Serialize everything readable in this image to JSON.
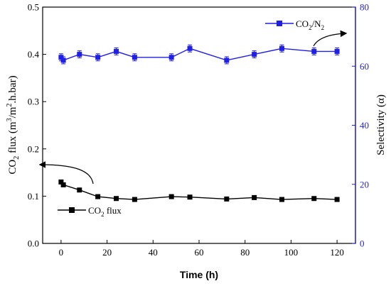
{
  "chart_data": {
    "type": "line",
    "title": "",
    "xlabel": "Time (h)",
    "xlim": [
      -8,
      128
    ],
    "xticks": [
      0,
      20,
      40,
      60,
      80,
      100,
      120
    ],
    "y_left": {
      "label_base": "CO",
      "label_sub": "2",
      "label_mid": " flux (m",
      "label_sup1": "3",
      "label_mid2": "/m",
      "label_sup2": "2",
      "label_end": ".h.bar)",
      "ylim": [
        0.0,
        0.5
      ],
      "ticks": [
        "0.0",
        "0.1",
        "0.2",
        "0.3",
        "0.4",
        "0.5"
      ]
    },
    "y_right": {
      "label": "Selectivity (α)",
      "ylim": [
        0,
        80
      ],
      "ticks": [
        "0",
        "20",
        "40",
        "60",
        "80"
      ],
      "color": "#1f1fe6"
    },
    "series": [
      {
        "name": "CO2 flux",
        "legend_base": "CO",
        "legend_sub": "2",
        "legend_end": " flux",
        "axis": "left",
        "color": "#000000",
        "x": [
          0,
          1,
          8,
          16,
          24,
          32,
          48,
          56,
          72,
          84,
          96,
          110,
          120
        ],
        "y": [
          0.13,
          0.124,
          0.113,
          0.099,
          0.095,
          0.093,
          0.099,
          0.098,
          0.094,
          0.097,
          0.093,
          0.095,
          0.093
        ],
        "err": [
          0.004,
          0.004,
          0.004,
          0.003,
          0.003,
          0.003,
          0.003,
          0.003,
          0.003,
          0.003,
          0.003,
          0.003,
          0.003
        ]
      },
      {
        "name": "CO2/N2",
        "legend_base": "CO",
        "legend_sub": "2",
        "legend_mid": "/N",
        "legend_sub2": "2",
        "axis": "right",
        "color": "#1f1fe6",
        "x": [
          0,
          1,
          8,
          16,
          24,
          32,
          48,
          56,
          72,
          84,
          96,
          110,
          120
        ],
        "y": [
          63,
          62,
          64,
          63,
          65,
          63,
          63,
          66,
          62,
          64,
          66,
          65,
          65
        ],
        "err": [
          1.2,
          1.2,
          1.2,
          1.2,
          1.2,
          1.2,
          1.2,
          1.2,
          1.2,
          1.2,
          1.2,
          1.2,
          1.2
        ]
      }
    ]
  }
}
